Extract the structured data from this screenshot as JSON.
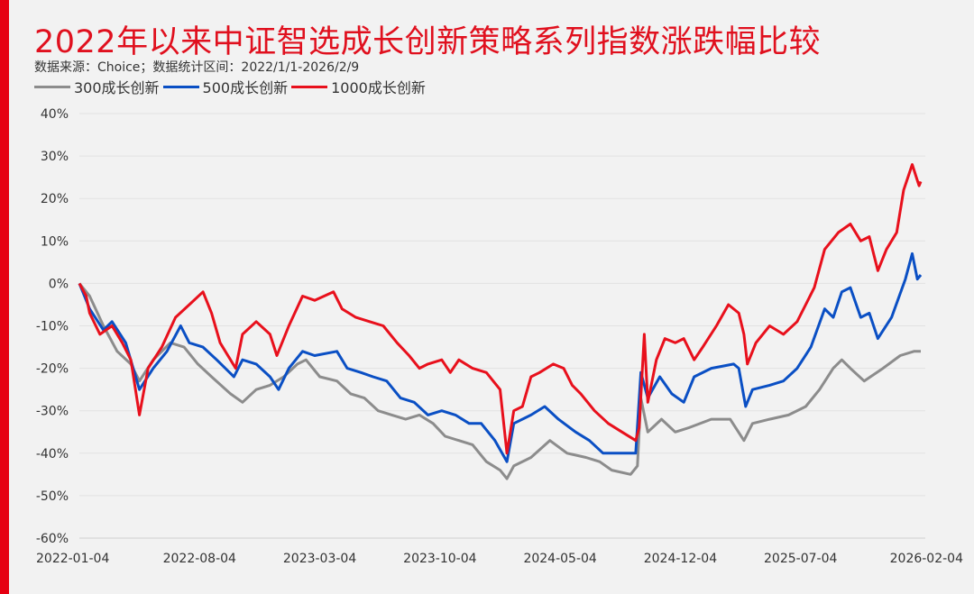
{
  "chart_data": {
    "type": "line",
    "title": "2022年以来中证智选成长创新策略系列指数涨跌幅比较",
    "subtitle": "数据来源：Choice；数据统计区间：2022/1/1-2026/2/9",
    "xlabel": "",
    "ylabel": "",
    "x_unit": "months since 2022-01-04",
    "x_range": [
      0,
      49
    ],
    "x_ticks": [
      {
        "x": 0,
        "label": "2022-01-04"
      },
      {
        "x": 7,
        "label": "2022-08-04"
      },
      {
        "x": 14,
        "label": "2023-03-04"
      },
      {
        "x": 21,
        "label": "2023-10-04"
      },
      {
        "x": 28,
        "label": "2024-05-04"
      },
      {
        "x": 35,
        "label": "2024-12-04"
      },
      {
        "x": 42,
        "label": "2025-07-04"
      },
      {
        "x": 49,
        "label": "2026-02-04"
      }
    ],
    "ylim": [
      -60,
      40
    ],
    "y_ticks": [
      {
        "v": 40,
        "label": "40%"
      },
      {
        "v": 30,
        "label": "30%"
      },
      {
        "v": 20,
        "label": "20%"
      },
      {
        "v": 10,
        "label": "10%"
      },
      {
        "v": 0,
        "label": "0%"
      },
      {
        "v": -10,
        "label": "-10%"
      },
      {
        "v": -20,
        "label": "-20%"
      },
      {
        "v": -30,
        "label": "-30%"
      },
      {
        "v": -40,
        "label": "-40%"
      },
      {
        "v": -50,
        "label": "-50%"
      },
      {
        "v": -60,
        "label": "-60%"
      }
    ],
    "grid": true,
    "legend_position": "top-left",
    "series": [
      {
        "name": "300成长创新",
        "color": "#8c8c8c",
        "points": [
          [
            0,
            0
          ],
          [
            0.6,
            -3
          ],
          [
            1.4,
            -10
          ],
          [
            2.2,
            -16
          ],
          [
            3.0,
            -19
          ],
          [
            3.5,
            -23
          ],
          [
            4.3,
            -18
          ],
          [
            5.3,
            -14
          ],
          [
            6.1,
            -15
          ],
          [
            6.9,
            -19
          ],
          [
            7.7,
            -22
          ],
          [
            8.8,
            -26
          ],
          [
            9.5,
            -28
          ],
          [
            10.3,
            -25
          ],
          [
            11.1,
            -24
          ],
          [
            11.9,
            -22
          ],
          [
            12.7,
            -19
          ],
          [
            13.2,
            -18
          ],
          [
            14.0,
            -22
          ],
          [
            15.0,
            -23
          ],
          [
            15.8,
            -26
          ],
          [
            16.6,
            -27
          ],
          [
            17.4,
            -30
          ],
          [
            18.2,
            -31
          ],
          [
            19.0,
            -32
          ],
          [
            19.8,
            -31
          ],
          [
            20.6,
            -33
          ],
          [
            21.3,
            -36
          ],
          [
            22.1,
            -37
          ],
          [
            22.9,
            -38
          ],
          [
            23.7,
            -42
          ],
          [
            24.5,
            -44
          ],
          [
            24.9,
            -46
          ],
          [
            25.3,
            -43
          ],
          [
            26.3,
            -41
          ],
          [
            27.4,
            -37
          ],
          [
            28.4,
            -40
          ],
          [
            29.5,
            -41
          ],
          [
            30.3,
            -42
          ],
          [
            31.0,
            -44
          ],
          [
            32.1,
            -45
          ],
          [
            32.5,
            -43
          ],
          [
            32.7,
            -27
          ],
          [
            33.1,
            -35
          ],
          [
            33.9,
            -32
          ],
          [
            34.7,
            -35
          ],
          [
            35.5,
            -34
          ],
          [
            36.8,
            -32
          ],
          [
            37.9,
            -32
          ],
          [
            38.7,
            -37
          ],
          [
            39.2,
            -33
          ],
          [
            40.2,
            -32
          ],
          [
            41.3,
            -31
          ],
          [
            42.3,
            -29
          ],
          [
            43.1,
            -25
          ],
          [
            43.9,
            -20
          ],
          [
            44.4,
            -18
          ],
          [
            44.9,
            -20
          ],
          [
            45.7,
            -23
          ],
          [
            46.8,
            -20
          ],
          [
            47.8,
            -17
          ],
          [
            48.6,
            -16
          ],
          [
            49.0,
            -16
          ]
        ]
      },
      {
        "name": "500成长创新",
        "color": "#0a4fc4",
        "points": [
          [
            0,
            0
          ],
          [
            0.6,
            -6
          ],
          [
            1.4,
            -11
          ],
          [
            1.9,
            -9
          ],
          [
            2.7,
            -14
          ],
          [
            3.5,
            -25
          ],
          [
            4.3,
            -20
          ],
          [
            5.1,
            -16
          ],
          [
            5.9,
            -10
          ],
          [
            6.4,
            -14
          ],
          [
            7.2,
            -15
          ],
          [
            8.0,
            -18
          ],
          [
            9.0,
            -22
          ],
          [
            9.5,
            -18
          ],
          [
            10.3,
            -19
          ],
          [
            11.1,
            -22
          ],
          [
            11.6,
            -25
          ],
          [
            12.2,
            -20
          ],
          [
            13.0,
            -16
          ],
          [
            13.7,
            -17
          ],
          [
            15.0,
            -16
          ],
          [
            15.6,
            -20
          ],
          [
            16.4,
            -21
          ],
          [
            17.1,
            -22
          ],
          [
            17.9,
            -23
          ],
          [
            18.7,
            -27
          ],
          [
            19.5,
            -28
          ],
          [
            20.3,
            -31
          ],
          [
            21.1,
            -30
          ],
          [
            21.9,
            -31
          ],
          [
            22.7,
            -33
          ],
          [
            23.4,
            -33
          ],
          [
            24.2,
            -37
          ],
          [
            24.9,
            -42
          ],
          [
            25.3,
            -33
          ],
          [
            26.3,
            -31
          ],
          [
            27.1,
            -29
          ],
          [
            27.9,
            -32
          ],
          [
            28.9,
            -35
          ],
          [
            29.7,
            -37
          ],
          [
            30.5,
            -40
          ],
          [
            31.6,
            -40
          ],
          [
            32.4,
            -40
          ],
          [
            32.7,
            -21
          ],
          [
            33.1,
            -27
          ],
          [
            33.8,
            -22
          ],
          [
            34.5,
            -26
          ],
          [
            35.2,
            -28
          ],
          [
            35.8,
            -22
          ],
          [
            36.8,
            -20
          ],
          [
            38.1,
            -19
          ],
          [
            38.4,
            -20
          ],
          [
            38.8,
            -29
          ],
          [
            39.2,
            -25
          ],
          [
            40.2,
            -24
          ],
          [
            41.0,
            -23
          ],
          [
            41.8,
            -20
          ],
          [
            42.6,
            -15
          ],
          [
            43.4,
            -6
          ],
          [
            43.9,
            -8
          ],
          [
            44.4,
            -2
          ],
          [
            44.9,
            -1
          ],
          [
            45.5,
            -8
          ],
          [
            46.0,
            -7
          ],
          [
            46.5,
            -13
          ],
          [
            47.3,
            -8
          ],
          [
            48.1,
            1
          ],
          [
            48.5,
            7
          ],
          [
            48.8,
            1
          ],
          [
            49.0,
            2
          ]
        ]
      },
      {
        "name": "1000成长创新",
        "color": "#e8101c",
        "points": [
          [
            0,
            0
          ],
          [
            0.4,
            -3
          ],
          [
            0.6,
            -7
          ],
          [
            1.2,
            -12
          ],
          [
            1.9,
            -10
          ],
          [
            2.5,
            -14
          ],
          [
            3.0,
            -18
          ],
          [
            3.5,
            -31
          ],
          [
            4.0,
            -20
          ],
          [
            4.8,
            -15
          ],
          [
            5.6,
            -8
          ],
          [
            6.4,
            -5
          ],
          [
            7.2,
            -2
          ],
          [
            7.7,
            -7
          ],
          [
            8.2,
            -14
          ],
          [
            8.8,
            -18
          ],
          [
            9.1,
            -20
          ],
          [
            9.5,
            -12
          ],
          [
            10.3,
            -9
          ],
          [
            11.1,
            -12
          ],
          [
            11.5,
            -17
          ],
          [
            12.2,
            -10
          ],
          [
            13.0,
            -3
          ],
          [
            13.7,
            -4
          ],
          [
            14.8,
            -2
          ],
          [
            15.3,
            -6
          ],
          [
            16.1,
            -8
          ],
          [
            16.9,
            -9
          ],
          [
            17.7,
            -10
          ],
          [
            18.5,
            -14
          ],
          [
            19.2,
            -17
          ],
          [
            19.8,
            -20
          ],
          [
            20.3,
            -19
          ],
          [
            21.1,
            -18
          ],
          [
            21.6,
            -21
          ],
          [
            22.1,
            -18
          ],
          [
            22.9,
            -20
          ],
          [
            23.7,
            -21
          ],
          [
            24.5,
            -25
          ],
          [
            24.9,
            -40
          ],
          [
            25.3,
            -30
          ],
          [
            25.8,
            -29
          ],
          [
            26.3,
            -22
          ],
          [
            26.8,
            -21
          ],
          [
            27.6,
            -19
          ],
          [
            28.2,
            -20
          ],
          [
            28.7,
            -24
          ],
          [
            29.2,
            -26
          ],
          [
            30.0,
            -30
          ],
          [
            30.8,
            -33
          ],
          [
            31.6,
            -35
          ],
          [
            32.4,
            -37
          ],
          [
            32.6,
            -34
          ],
          [
            32.9,
            -12
          ],
          [
            33.1,
            -28
          ],
          [
            33.6,
            -18
          ],
          [
            34.1,
            -13
          ],
          [
            34.7,
            -14
          ],
          [
            35.2,
            -13
          ],
          [
            35.8,
            -18
          ],
          [
            36.3,
            -15
          ],
          [
            37.1,
            -10
          ],
          [
            37.8,
            -5
          ],
          [
            38.4,
            -7
          ],
          [
            38.7,
            -12
          ],
          [
            38.9,
            -19
          ],
          [
            39.4,
            -14
          ],
          [
            40.2,
            -10
          ],
          [
            41.0,
            -12
          ],
          [
            41.8,
            -9
          ],
          [
            42.3,
            -5
          ],
          [
            42.8,
            -1
          ],
          [
            43.4,
            8
          ],
          [
            44.2,
            12
          ],
          [
            44.9,
            14
          ],
          [
            45.5,
            10
          ],
          [
            46.0,
            11
          ],
          [
            46.5,
            3
          ],
          [
            47.0,
            8
          ],
          [
            47.6,
            12
          ],
          [
            48.0,
            22
          ],
          [
            48.5,
            28
          ],
          [
            48.9,
            23
          ],
          [
            49.0,
            24
          ]
        ]
      }
    ]
  }
}
